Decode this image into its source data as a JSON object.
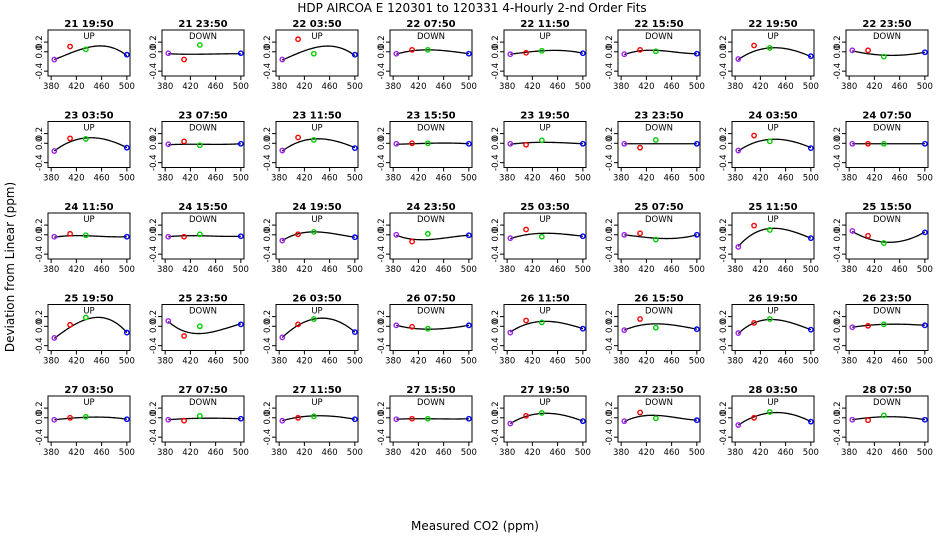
{
  "chart_data": {
    "type": "scatter",
    "title": "HDP   AIRCOA E   120301 to 120331   4-Hourly 2-nd Order Fits",
    "xlabel": "Measured CO2 (ppm)",
    "ylabel": "Deviation from Linear (ppm)",
    "xlim": [
      375,
      505
    ],
    "ylim": [
      -0.5,
      0.45
    ],
    "x_ticks": [
      "380",
      "420",
      "460",
      "500"
    ],
    "y_ticks": [
      "-0.4",
      "0.0",
      "0.2"
    ],
    "x_values": [
      385,
      410,
      435,
      500
    ],
    "point_colors": [
      "#a020f0",
      "#ff0000",
      "#00cc00",
      "#0000ff"
    ],
    "fit_color": "#000000",
    "panels": [
      {
        "title": "21 19:50",
        "direction": "UP",
        "fit": [
          -0.16,
          -0.03,
          0.08,
          -0.08
        ],
        "points": [
          -0.16,
          0.11,
          0.05,
          -0.06
        ]
      },
      {
        "title": "21 23:50",
        "direction": "DOWN",
        "fit": [
          -0.04,
          -0.05,
          -0.05,
          -0.04
        ],
        "points": [
          -0.03,
          -0.16,
          0.14,
          -0.03
        ]
      },
      {
        "title": "22 03:50",
        "direction": "UP",
        "fit": [
          -0.17,
          -0.03,
          0.08,
          -0.08
        ],
        "points": [
          -0.16,
          0.26,
          -0.04,
          -0.06
        ]
      },
      {
        "title": "22 07:50",
        "direction": "DOWN",
        "fit": [
          -0.05,
          0.02,
          0.04,
          -0.04
        ],
        "points": [
          -0.04,
          0.04,
          0.04,
          -0.04
        ]
      },
      {
        "title": "22 11:50",
        "direction": "UP",
        "fit": [
          -0.05,
          -0.01,
          0.02,
          -0.03
        ],
        "points": [
          -0.05,
          -0.02,
          0.02,
          -0.03
        ]
      },
      {
        "title": "22 15:50",
        "direction": "DOWN",
        "fit": [
          -0.06,
          0.02,
          0.03,
          -0.04
        ],
        "points": [
          -0.05,
          0.04,
          0.01,
          -0.04
        ]
      },
      {
        "title": "22 19:50",
        "direction": "UP",
        "fit": [
          -0.16,
          0.01,
          0.08,
          -0.1
        ],
        "points": [
          -0.15,
          0.13,
          0.08,
          -0.09
        ]
      },
      {
        "title": "22 23:50",
        "direction": "DOWN",
        "fit": [
          0.02,
          -0.04,
          -0.07,
          -0.01
        ],
        "points": [
          0.03,
          0.03,
          -0.1,
          -0.01
        ]
      },
      {
        "title": "23 03:50",
        "direction": "UP",
        "fit": [
          -0.16,
          0.03,
          0.11,
          -0.09
        ],
        "points": [
          -0.16,
          0.1,
          0.09,
          -0.09
        ]
      },
      {
        "title": "23 07:50",
        "direction": "DOWN",
        "fit": [
          -0.03,
          -0.02,
          -0.02,
          -0.01
        ],
        "points": [
          -0.02,
          0.04,
          -0.04,
          -0.01
        ]
      },
      {
        "title": "23 11:50",
        "direction": "UP",
        "fit": [
          -0.16,
          0.02,
          0.09,
          -0.09
        ],
        "points": [
          -0.15,
          0.12,
          0.07,
          -0.1
        ]
      },
      {
        "title": "23 15:50",
        "direction": "DOWN",
        "fit": [
          -0.02,
          -0.01,
          0.0,
          -0.01
        ],
        "points": [
          -0.01,
          0.0,
          0.0,
          -0.01
        ]
      },
      {
        "title": "23 19:50",
        "direction": "UP",
        "fit": [
          -0.02,
          0.01,
          0.02,
          -0.01
        ],
        "points": [
          -0.01,
          -0.03,
          0.06,
          -0.01
        ]
      },
      {
        "title": "23 23:50",
        "direction": "DOWN",
        "fit": [
          -0.01,
          -0.01,
          -0.01,
          -0.01
        ],
        "points": [
          -0.01,
          -0.09,
          0.07,
          -0.01
        ]
      },
      {
        "title": "24 03:50",
        "direction": "UP",
        "fit": [
          -0.16,
          0.01,
          0.08,
          -0.09
        ],
        "points": [
          -0.15,
          0.16,
          0.04,
          -0.1
        ]
      },
      {
        "title": "24 07:50",
        "direction": "DOWN",
        "fit": [
          -0.01,
          -0.01,
          -0.01,
          -0.01
        ],
        "points": [
          -0.01,
          -0.01,
          -0.01,
          -0.01
        ]
      },
      {
        "title": "24 11:50",
        "direction": "UP",
        "fit": [
          -0.05,
          -0.02,
          -0.02,
          -0.04
        ],
        "points": [
          -0.04,
          0.02,
          -0.01,
          -0.04
        ]
      },
      {
        "title": "24 15:50",
        "direction": "DOWN",
        "fit": [
          -0.04,
          -0.02,
          -0.02,
          -0.03
        ],
        "points": [
          -0.04,
          -0.04,
          0.01,
          -0.03
        ]
      },
      {
        "title": "24 19:50",
        "direction": "UP",
        "fit": [
          -0.12,
          0.02,
          0.06,
          -0.05
        ],
        "points": [
          -0.12,
          0.01,
          0.06,
          -0.05
        ]
      },
      {
        "title": "24 23:50",
        "direction": "DOWN",
        "fit": [
          -0.01,
          -0.09,
          -0.1,
          -0.01
        ],
        "points": [
          0.0,
          -0.14,
          0.02,
          -0.01
        ]
      },
      {
        "title": "25 03:50",
        "direction": "UP",
        "fit": [
          -0.08,
          0.0,
          0.03,
          -0.03
        ],
        "points": [
          -0.07,
          0.11,
          -0.04,
          -0.03
        ]
      },
      {
        "title": "25 07:50",
        "direction": "DOWN",
        "fit": [
          0.0,
          -0.04,
          -0.07,
          0.0
        ],
        "points": [
          0.0,
          0.03,
          -0.1,
          0.0
        ]
      },
      {
        "title": "25 11:50",
        "direction": "UP",
        "fit": [
          -0.24,
          0.03,
          0.13,
          -0.07
        ],
        "points": [
          -0.25,
          0.19,
          0.1,
          -0.07
        ]
      },
      {
        "title": "25 15:50",
        "direction": "DOWN",
        "fit": [
          0.07,
          -0.08,
          -0.15,
          0.06
        ],
        "points": [
          0.08,
          -0.02,
          -0.17,
          0.05
        ]
      },
      {
        "title": "25 19:50",
        "direction": "UP",
        "fit": [
          -0.25,
          -0.02,
          0.14,
          -0.13
        ],
        "points": [
          -0.24,
          0.03,
          0.18,
          -0.13
        ]
      },
      {
        "title": "25 23:50",
        "direction": "DOWN",
        "fit": [
          0.1,
          -0.1,
          -0.15,
          0.05
        ],
        "points": [
          0.11,
          -0.2,
          0.0,
          0.04
        ]
      },
      {
        "title": "26 03:50",
        "direction": "UP",
        "fit": [
          -0.23,
          0.02,
          0.15,
          -0.12
        ],
        "points": [
          -0.23,
          0.04,
          0.15,
          -0.12
        ]
      },
      {
        "title": "26 07:50",
        "direction": "DOWN",
        "fit": [
          0.02,
          -0.04,
          -0.06,
          0.02
        ],
        "points": [
          0.02,
          -0.01,
          -0.05,
          0.02
        ]
      },
      {
        "title": "26 11:50",
        "direction": "UP",
        "fit": [
          -0.12,
          0.04,
          0.1,
          -0.05
        ],
        "points": [
          -0.13,
          0.12,
          0.08,
          -0.05
        ]
      },
      {
        "title": "26 15:50",
        "direction": "DOWN",
        "fit": [
          -0.08,
          0.02,
          0.05,
          -0.06
        ],
        "points": [
          -0.08,
          0.15,
          -0.03,
          -0.06
        ]
      },
      {
        "title": "26 19:50",
        "direction": "UP",
        "fit": [
          -0.15,
          0.07,
          0.14,
          -0.07
        ],
        "points": [
          -0.14,
          0.07,
          0.15,
          -0.07
        ]
      },
      {
        "title": "26 23:50",
        "direction": "DOWN",
        "fit": [
          -0.02,
          0.02,
          0.04,
          0.02
        ],
        "points": [
          -0.02,
          0.01,
          0.04,
          0.02
        ]
      },
      {
        "title": "27 03:50",
        "direction": "UP",
        "fit": [
          -0.04,
          -0.01,
          0.01,
          -0.03
        ],
        "points": [
          -0.04,
          0.0,
          0.02,
          -0.03
        ]
      },
      {
        "title": "27 07:50",
        "direction": "DOWN",
        "fit": [
          -0.04,
          -0.02,
          -0.01,
          -0.02
        ],
        "points": [
          -0.04,
          -0.06,
          0.04,
          -0.02
        ]
      },
      {
        "title": "27 11:50",
        "direction": "UP",
        "fit": [
          -0.06,
          0.01,
          0.04,
          -0.03
        ],
        "points": [
          -0.06,
          0.0,
          0.03,
          -0.03
        ]
      },
      {
        "title": "27 15:50",
        "direction": "DOWN",
        "fit": [
          -0.03,
          -0.02,
          -0.02,
          -0.02
        ],
        "points": [
          -0.03,
          -0.02,
          -0.02,
          -0.02
        ]
      },
      {
        "title": "27 19:50",
        "direction": "UP",
        "fit": [
          -0.12,
          0.03,
          0.09,
          -0.07
        ],
        "points": [
          -0.12,
          0.04,
          0.1,
          -0.07
        ]
      },
      {
        "title": "27 23:50",
        "direction": "DOWN",
        "fit": [
          -0.08,
          0.03,
          0.05,
          -0.05
        ],
        "points": [
          -0.07,
          0.11,
          -0.01,
          -0.05
        ]
      },
      {
        "title": "28 03:50",
        "direction": "UP",
        "fit": [
          -0.15,
          0.02,
          0.1,
          -0.08
        ],
        "points": [
          -0.15,
          0.0,
          0.12,
          -0.08
        ]
      },
      {
        "title": "28 07:50",
        "direction": "DOWN",
        "fit": [
          -0.04,
          0.0,
          0.02,
          -0.04
        ],
        "points": [
          -0.04,
          -0.05,
          0.05,
          -0.04
        ]
      }
    ]
  }
}
